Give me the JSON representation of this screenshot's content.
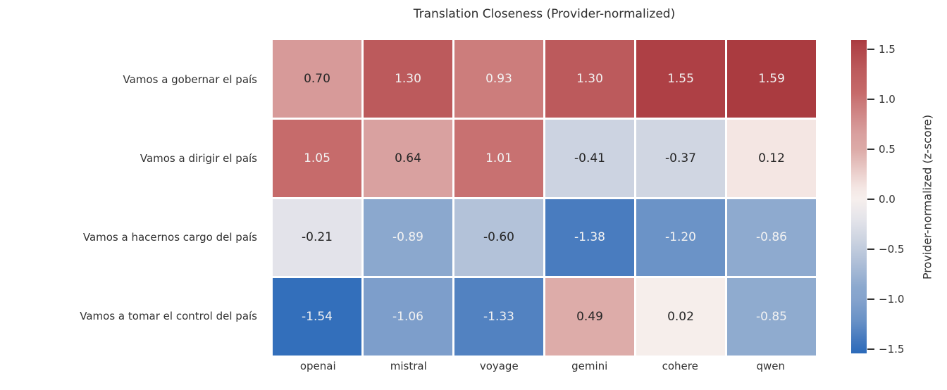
{
  "chart_data": {
    "type": "heatmap",
    "title": "Translation Closeness (Provider-normalized)",
    "rows": [
      "Vamos a gobernar el país",
      "Vamos a dirigir el país",
      "Vamos a hacernos cargo del país",
      "Vamos a tomar el control del país"
    ],
    "columns": [
      "openai",
      "mistral",
      "voyage",
      "gemini",
      "cohere",
      "qwen"
    ],
    "values": [
      [
        0.7,
        1.3,
        0.93,
        1.3,
        1.55,
        1.59
      ],
      [
        1.05,
        0.64,
        1.01,
        -0.41,
        -0.37,
        0.12
      ],
      [
        -0.21,
        -0.89,
        -0.6,
        -1.38,
        -1.2,
        -0.86
      ],
      [
        -1.54,
        -1.06,
        -1.33,
        0.49,
        0.02,
        -0.85
      ]
    ],
    "value_format_decimals": 2,
    "vmin": -1.54,
    "vmax": 1.59,
    "colorbar": {
      "label": "Provider-normalized (z-score)",
      "ticks": [
        "1.5",
        "1.0",
        "0.5",
        "0.0",
        "−0.5",
        "−1.0",
        "−1.5"
      ],
      "tick_values": [
        1.5,
        1.0,
        0.5,
        0.0,
        -0.5,
        -1.0,
        -1.5
      ]
    },
    "colormap": {
      "name": "vlag",
      "stops": [
        {
          "v": -1.6,
          "c": "#2b6aba"
        },
        {
          "v": -1.4,
          "c": "#4579be"
        },
        {
          "v": -1.2,
          "c": "#6b93c7"
        },
        {
          "v": -1.0,
          "c": "#85a3cd"
        },
        {
          "v": -0.88,
          "c": "#8ba8ce"
        },
        {
          "v": -0.6,
          "c": "#b3c2d9"
        },
        {
          "v": -0.4,
          "c": "#cdd4e1"
        },
        {
          "v": -0.2,
          "c": "#e4e4ea"
        },
        {
          "v": 0.0,
          "c": "#f6efed"
        },
        {
          "v": 0.12,
          "c": "#f4e6e3"
        },
        {
          "v": 0.5,
          "c": "#dcaaa7"
        },
        {
          "v": 0.65,
          "c": "#d9a09f"
        },
        {
          "v": 0.95,
          "c": "#cb7a7a"
        },
        {
          "v": 1.06,
          "c": "#c66a6a"
        },
        {
          "v": 1.3,
          "c": "#bc5a5c"
        },
        {
          "v": 1.55,
          "c": "#ae4045"
        },
        {
          "v": 1.6,
          "c": "#a93a3f"
        }
      ]
    },
    "annotation_colors": {
      "dark_text": "#262626",
      "light_text": "#f2f2f2"
    },
    "layout": {
      "legend_position": "right-colorbar",
      "grid": "white-cell-gaps"
    }
  }
}
